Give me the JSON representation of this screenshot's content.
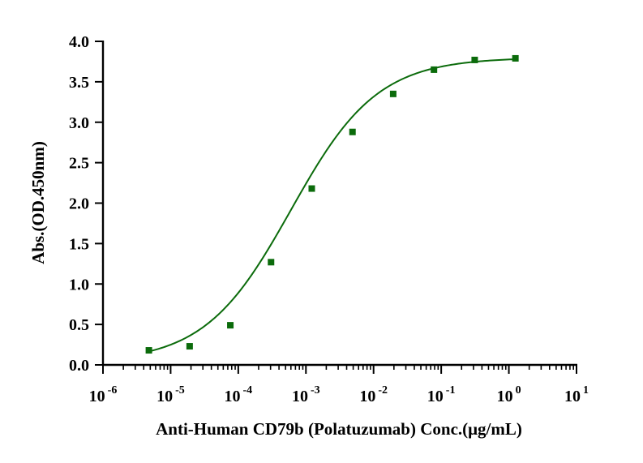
{
  "chart_data": {
    "type": "scatter",
    "xlabel": "Anti-Human CD79b (Polatuzumab) Conc.(μg/mL)",
    "ylabel": "Abs.(OD.450nm)",
    "x_scale": "log",
    "xlim": [
      1e-06,
      10
    ],
    "ylim": [
      0,
      4.0
    ],
    "x_ticks": [
      {
        "base": "10",
        "exp": "-6"
      },
      {
        "base": "10",
        "exp": "-5"
      },
      {
        "base": "10",
        "exp": "-4"
      },
      {
        "base": "10",
        "exp": "-3"
      },
      {
        "base": "10",
        "exp": "-2"
      },
      {
        "base": "10",
        "exp": "-1"
      },
      {
        "base": "10",
        "exp": "0"
      },
      {
        "base": "10",
        "exp": "1"
      }
    ],
    "y_ticks": [
      "0.0",
      "0.5",
      "1.0",
      "1.5",
      "2.0",
      "2.5",
      "3.0",
      "3.5",
      "4.0"
    ],
    "grid": false,
    "color": "#0b6b0b",
    "series": [
      {
        "x": [
          4.77e-06,
          1.91e-05,
          7.63e-05,
          0.000305,
          0.00122,
          0.00488,
          0.0195,
          0.0781,
          0.3125,
          1.25
        ],
        "y": [
          0.18,
          0.23,
          0.49,
          1.27,
          2.18,
          2.88,
          3.35,
          3.65,
          3.77,
          3.79
        ]
      }
    ],
    "fit": {
      "model": "4PL",
      "bottom": 0.03,
      "top": 3.8,
      "ec50": 0.0006,
      "hill": 0.68
    }
  }
}
